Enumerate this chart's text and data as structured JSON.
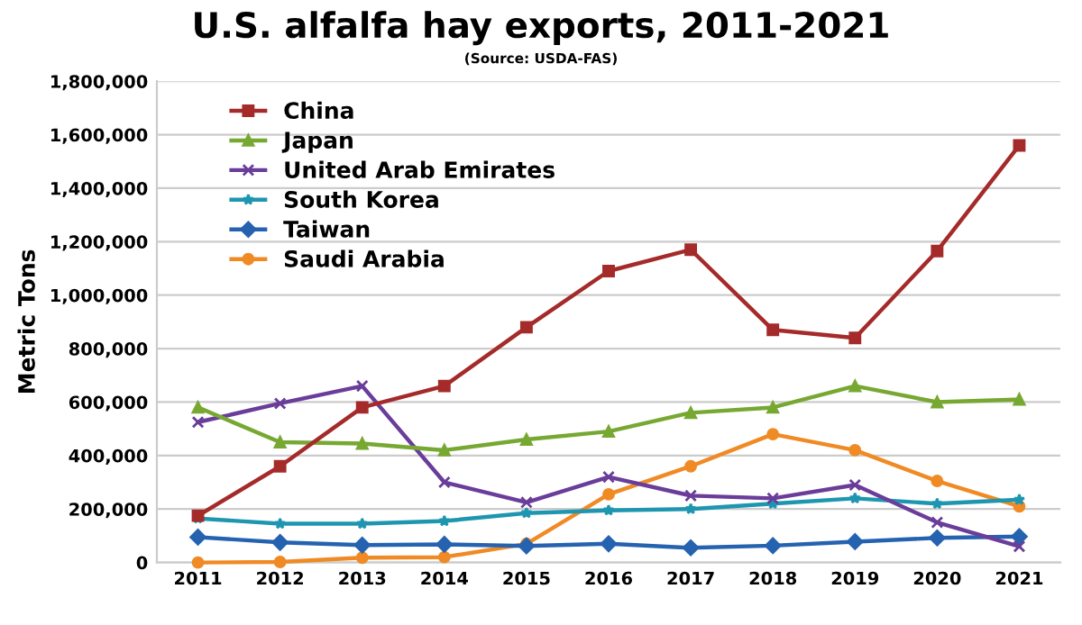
{
  "chart_data": {
    "type": "line",
    "title": "U.S. alfalfa hay exports, 2011-2021",
    "subtitle": "(Source: USDA-FAS)",
    "ylabel": "Metric Tons",
    "categories": [
      "2011",
      "2012",
      "2013",
      "2014",
      "2015",
      "2016",
      "2017",
      "2018",
      "2019",
      "2020",
      "2021"
    ],
    "series": [
      {
        "name": "China",
        "color": "#a52a2a",
        "marker": "square",
        "values": [
          175000,
          360000,
          580000,
          660000,
          880000,
          1090000,
          1170000,
          870000,
          840000,
          1165000,
          1560000
        ]
      },
      {
        "name": "Japan",
        "color": "#77a832",
        "marker": "triangle",
        "values": [
          580000,
          450000,
          445000,
          420000,
          460000,
          490000,
          560000,
          580000,
          660000,
          600000,
          610000
        ]
      },
      {
        "name": "United Arab Emirates",
        "color": "#6a3d9a",
        "marker": "cross",
        "values": [
          525000,
          595000,
          660000,
          300000,
          225000,
          320000,
          250000,
          240000,
          290000,
          150000,
          60000
        ]
      },
      {
        "name": "South Korea",
        "color": "#1e96b0",
        "marker": "star",
        "values": [
          165000,
          145000,
          145000,
          155000,
          185000,
          195000,
          200000,
          220000,
          240000,
          220000,
          235000
        ]
      },
      {
        "name": "Taiwan",
        "color": "#2563b0",
        "marker": "diamond",
        "values": [
          95000,
          75000,
          65000,
          68000,
          62000,
          70000,
          55000,
          63000,
          78000,
          92000,
          97000
        ]
      },
      {
        "name": "Saudi Arabia",
        "color": "#f08a24",
        "marker": "circle",
        "values": [
          0,
          2000,
          18000,
          20000,
          70000,
          255000,
          360000,
          480000,
          420000,
          305000,
          210000
        ]
      }
    ],
    "ylim": [
      0,
      1800000
    ],
    "yticks": [
      {
        "value": 0,
        "label": "0"
      },
      {
        "value": 200000,
        "label": "200,000"
      },
      {
        "value": 400000,
        "label": "400,000"
      },
      {
        "value": 600000,
        "label": "600,000"
      },
      {
        "value": 800000,
        "label": "800,000"
      },
      {
        "value": 1000000,
        "label": "1,000,000"
      },
      {
        "value": 1200000,
        "label": "1,200,000"
      },
      {
        "value": 1400000,
        "label": "1,400,000"
      },
      {
        "value": 1600000,
        "label": "1,600,000"
      },
      {
        "value": 1800000,
        "label": "1,800,000"
      }
    ],
    "grid": "y",
    "legend": "top left",
    "line_style": "solid"
  }
}
